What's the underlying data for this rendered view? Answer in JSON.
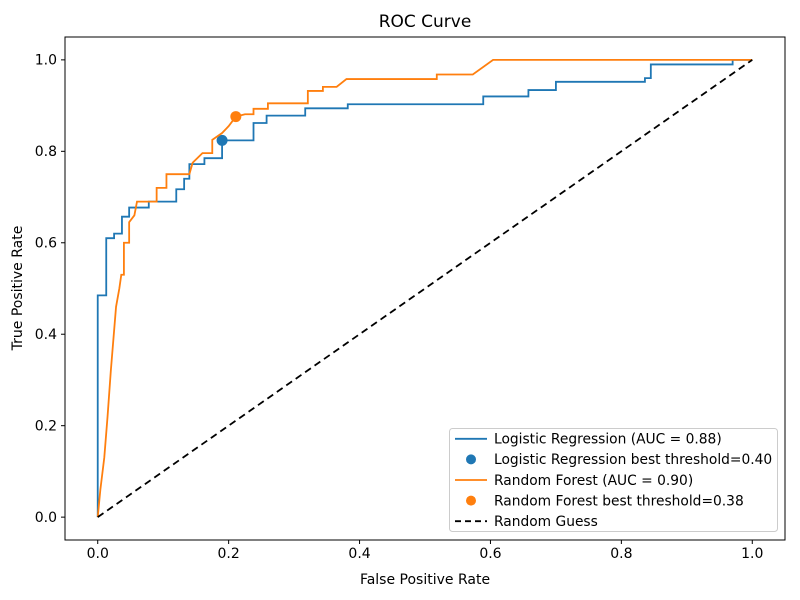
{
  "chart_data": {
    "type": "line",
    "title": "ROC Curve",
    "xlabel": "False Positive Rate",
    "ylabel": "True Positive Rate",
    "xlim": [
      -0.05,
      1.05
    ],
    "ylim": [
      -0.05,
      1.05
    ],
    "xticks": [
      0.0,
      0.2,
      0.4,
      0.6,
      0.8,
      1.0
    ],
    "yticks": [
      0.0,
      0.2,
      0.4,
      0.6,
      0.8,
      1.0
    ],
    "grid": false,
    "legend_position": "lower right",
    "colors": {
      "logistic_regression": "#1f77b4",
      "random_forest": "#ff7f0e",
      "random_guess": "#000000",
      "legend_border": "#cccccc",
      "axes": "#000000"
    },
    "series": [
      {
        "name": "Logistic Regression (AUC = 0.88)",
        "slug": "logistic-regression",
        "auc": 0.88,
        "style": "line",
        "color": "#1f77b4",
        "points": [
          [
            0.0,
            0.0
          ],
          [
            0.0,
            0.485
          ],
          [
            0.013,
            0.485
          ],
          [
            0.013,
            0.61
          ],
          [
            0.025,
            0.61
          ],
          [
            0.025,
            0.62
          ],
          [
            0.037,
            0.62
          ],
          [
            0.037,
            0.657
          ],
          [
            0.048,
            0.657
          ],
          [
            0.048,
            0.677
          ],
          [
            0.078,
            0.677
          ],
          [
            0.078,
            0.69
          ],
          [
            0.12,
            0.69
          ],
          [
            0.12,
            0.717
          ],
          [
            0.132,
            0.717
          ],
          [
            0.132,
            0.74
          ],
          [
            0.14,
            0.74
          ],
          [
            0.14,
            0.772
          ],
          [
            0.163,
            0.772
          ],
          [
            0.163,
            0.785
          ],
          [
            0.19,
            0.785
          ],
          [
            0.19,
            0.824
          ],
          [
            0.238,
            0.824
          ],
          [
            0.238,
            0.862
          ],
          [
            0.258,
            0.862
          ],
          [
            0.258,
            0.878
          ],
          [
            0.317,
            0.878
          ],
          [
            0.317,
            0.894
          ],
          [
            0.382,
            0.894
          ],
          [
            0.382,
            0.903
          ],
          [
            0.589,
            0.903
          ],
          [
            0.589,
            0.92
          ],
          [
            0.658,
            0.92
          ],
          [
            0.658,
            0.934
          ],
          [
            0.7,
            0.934
          ],
          [
            0.7,
            0.952
          ],
          [
            0.836,
            0.952
          ],
          [
            0.836,
            0.96
          ],
          [
            0.845,
            0.96
          ],
          [
            0.845,
            0.99
          ],
          [
            0.97,
            0.99
          ],
          [
            0.97,
            1.0
          ],
          [
            1.0,
            1.0
          ]
        ]
      },
      {
        "name": "Logistic Regression best threshold=0.40",
        "slug": "logistic-regression-best-threshold",
        "threshold": 0.4,
        "style": "marker",
        "color": "#1f77b4",
        "points": [
          [
            0.19,
            0.824
          ]
        ]
      },
      {
        "name": "Random Forest (AUC = 0.90)",
        "slug": "random-forest",
        "auc": 0.9,
        "style": "line",
        "color": "#ff7f0e",
        "points": [
          [
            0.0,
            0.0
          ],
          [
            0.004,
            0.06
          ],
          [
            0.01,
            0.13
          ],
          [
            0.015,
            0.22
          ],
          [
            0.02,
            0.32
          ],
          [
            0.028,
            0.46
          ],
          [
            0.033,
            0.5
          ],
          [
            0.036,
            0.53
          ],
          [
            0.04,
            0.53
          ],
          [
            0.04,
            0.6
          ],
          [
            0.048,
            0.6
          ],
          [
            0.048,
            0.645
          ],
          [
            0.056,
            0.66
          ],
          [
            0.06,
            0.69
          ],
          [
            0.09,
            0.69
          ],
          [
            0.09,
            0.72
          ],
          [
            0.105,
            0.72
          ],
          [
            0.105,
            0.75
          ],
          [
            0.14,
            0.75
          ],
          [
            0.145,
            0.775
          ],
          [
            0.16,
            0.796
          ],
          [
            0.175,
            0.796
          ],
          [
            0.175,
            0.825
          ],
          [
            0.19,
            0.84
          ],
          [
            0.2,
            0.855
          ],
          [
            0.211,
            0.876
          ],
          [
            0.225,
            0.881
          ],
          [
            0.238,
            0.881
          ],
          [
            0.238,
            0.893
          ],
          [
            0.26,
            0.893
          ],
          [
            0.26,
            0.905
          ],
          [
            0.321,
            0.905
          ],
          [
            0.321,
            0.932
          ],
          [
            0.344,
            0.932
          ],
          [
            0.344,
            0.941
          ],
          [
            0.365,
            0.941
          ],
          [
            0.38,
            0.958
          ],
          [
            0.518,
            0.958
          ],
          [
            0.518,
            0.968
          ],
          [
            0.573,
            0.968
          ],
          [
            0.604,
            1.0
          ],
          [
            1.0,
            1.0
          ]
        ]
      },
      {
        "name": "Random Forest best threshold=0.38",
        "slug": "random-forest-best-threshold",
        "threshold": 0.38,
        "style": "marker",
        "color": "#ff7f0e",
        "points": [
          [
            0.211,
            0.876
          ]
        ]
      },
      {
        "name": "Random Guess",
        "slug": "random-guess",
        "style": "dashed",
        "color": "#000000",
        "points": [
          [
            0.0,
            0.0
          ],
          [
            1.0,
            1.0
          ]
        ]
      }
    ]
  }
}
